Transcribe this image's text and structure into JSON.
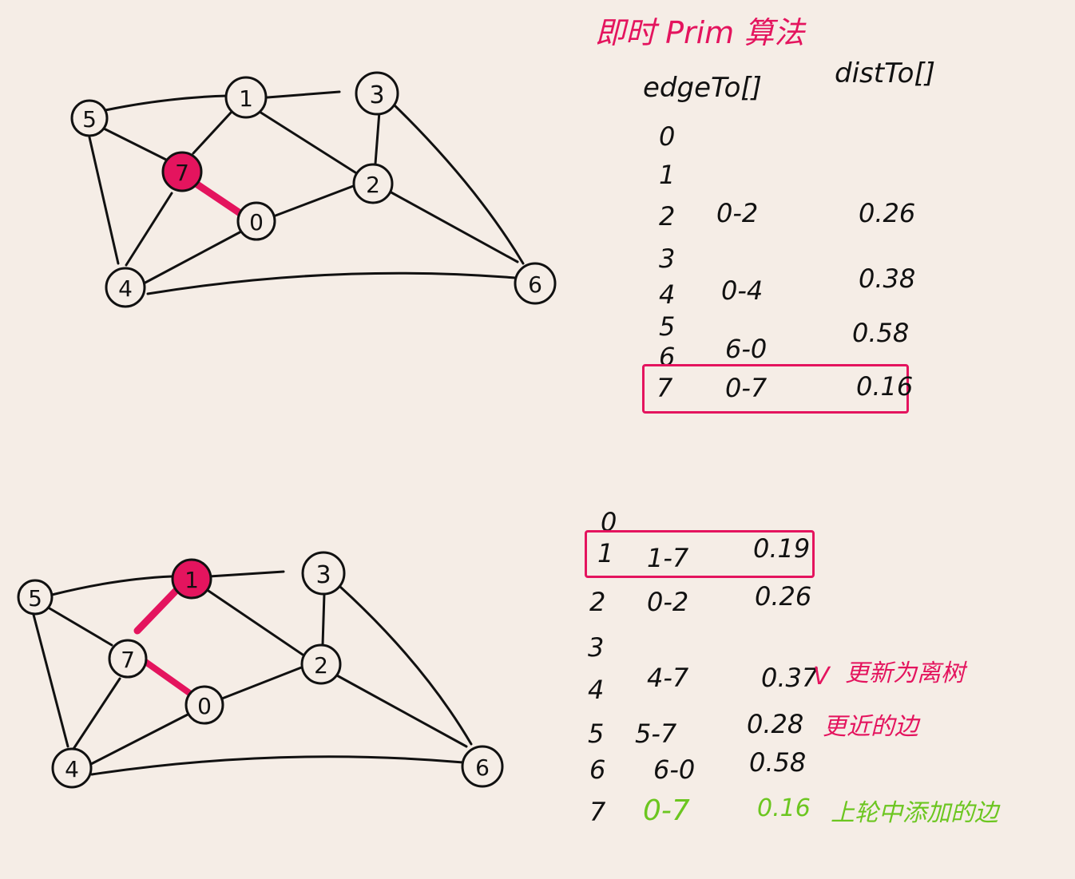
{
  "colors": {
    "accent": "#e4145e",
    "note_green": "#6cc620",
    "ink": "#111111",
    "paper": "#f5ede6"
  },
  "title": "即时 Prim 算法",
  "headers": {
    "edge": "edgeTo[]",
    "dist": "distTo[]"
  },
  "table1": [
    {
      "v": "0",
      "edge": "",
      "dist": ""
    },
    {
      "v": "1",
      "edge": "",
      "dist": ""
    },
    {
      "v": "2",
      "edge": "0-2",
      "dist": "0.26"
    },
    {
      "v": "3",
      "edge": "",
      "dist": ""
    },
    {
      "v": "4",
      "edge": "0-4",
      "dist": "0.38"
    },
    {
      "v": "5",
      "edge": "",
      "dist": ""
    },
    {
      "v": "6",
      "edge": "6-0",
      "dist": "0.58"
    },
    {
      "v": "7",
      "edge": "0-7",
      "dist": "0.16"
    }
  ],
  "table2": [
    {
      "v": "0",
      "edge": "",
      "dist": ""
    },
    {
      "v": "1",
      "edge": "1-7",
      "dist": "0.19"
    },
    {
      "v": "2",
      "edge": "0-2",
      "dist": "0.26"
    },
    {
      "v": "3",
      "edge": "",
      "dist": ""
    },
    {
      "v": "4",
      "edge": "4-7",
      "dist": "0.37"
    },
    {
      "v": "5",
      "edge": "5-7",
      "dist": "0.28"
    },
    {
      "v": "6",
      "edge": "6-0",
      "dist": "0.58"
    },
    {
      "v": "7",
      "edge": "0-7",
      "dist": "0.16"
    }
  ],
  "notes": {
    "check": "V",
    "update1": "更新为离树",
    "update2": "更近的边",
    "last_round": "上轮中添加的边"
  },
  "graph1_labels": [
    "0",
    "1",
    "2",
    "3",
    "4",
    "5",
    "6",
    "7"
  ],
  "graph2_labels": [
    "0",
    "1",
    "2",
    "3",
    "4",
    "5",
    "6",
    "7"
  ]
}
